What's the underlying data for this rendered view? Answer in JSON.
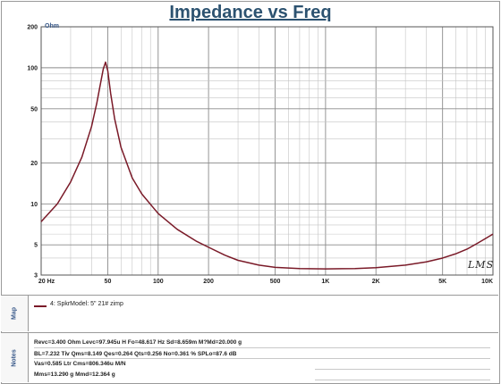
{
  "title": "Impedance vs Freq",
  "signature": "LMS",
  "chart_data": {
    "type": "line",
    "title": "Impedance vs Freq",
    "ylabel": "Ohm",
    "xscale": "log",
    "yscale": "log",
    "xlim": [
      20,
      10000
    ],
    "ylim": [
      3,
      200
    ],
    "grid": true,
    "x_ticks": [
      20,
      50,
      100,
      200,
      500,
      1000,
      2000,
      5000,
      10000
    ],
    "x_tick_labels": [
      "20 Hz",
      "50",
      "100",
      "200",
      "500",
      "1K",
      "2K",
      "5K",
      "10K"
    ],
    "y_ticks": [
      3,
      5,
      10,
      20,
      50,
      100,
      200
    ],
    "y_tick_labels": [
      "3",
      "5",
      "10",
      "20",
      "50",
      "100",
      "200"
    ],
    "series": [
      {
        "name": "4: SpkrModel: 5\" 21# zimp",
        "color": "#7a1a28",
        "x": [
          20,
          25,
          30,
          35,
          40,
          43,
          45,
          47,
          48.5,
          50,
          52,
          55,
          60,
          70,
          80,
          100,
          130,
          170,
          200,
          250,
          300,
          400,
          500,
          700,
          1000,
          1500,
          2000,
          3000,
          4000,
          5000,
          6000,
          7000,
          8000,
          9000,
          10000
        ],
        "y": [
          7.4,
          10.0,
          14.5,
          22.0,
          37.0,
          55.0,
          74.0,
          98.0,
          110.0,
          95.0,
          65.0,
          42.0,
          26.0,
          15.5,
          11.8,
          8.5,
          6.5,
          5.3,
          4.8,
          4.2,
          3.85,
          3.55,
          3.42,
          3.35,
          3.33,
          3.35,
          3.4,
          3.55,
          3.75,
          4.0,
          4.3,
          4.65,
          5.1,
          5.55,
          6.0
        ]
      }
    ]
  },
  "map": {
    "label": "Map",
    "legend": "4: SpkrModel: 5\" 21# zimp"
  },
  "notes": {
    "label": "Notes",
    "lines": [
      "Revc=3.400 Ohm  Levc=97.945u H  Fo=48.617 Hz  Sd=8.659m M?Md=20.000 g",
      "BL=7.232 Tⅳ  Qms=8.149  Qes=0.264  Qts=0.256  No=0.361 %  SPLo=87.6 dB",
      "Vas=0.585 Ltr  Cms=806.346u M/N",
      "Mms=13.290 g  Mmd=12.364 g"
    ]
  }
}
